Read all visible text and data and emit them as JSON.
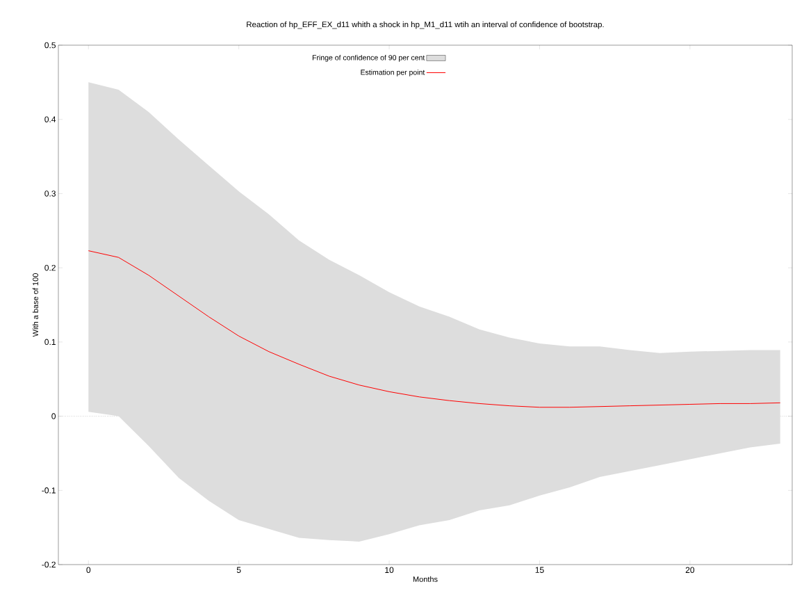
{
  "chart_data": {
    "type": "line",
    "title": "Reaction of hp_EFF_EX_d11 whith a shock in hp_M1_d11 wtih an interval of confidence of bootstrap.",
    "xlabel": "Months",
    "ylabel": "With a base of 100",
    "x": [
      0,
      1,
      2,
      3,
      4,
      5,
      6,
      7,
      8,
      9,
      10,
      11,
      12,
      13,
      14,
      15,
      16,
      17,
      18,
      19,
      20,
      21,
      22,
      23
    ],
    "series": [
      {
        "name": "Fringe of confidence of 90 per cent",
        "type": "area",
        "color": "#dddddd",
        "values": [
          null,
          null,
          null,
          null,
          null,
          null,
          null,
          null,
          null,
          null,
          null,
          null,
          null,
          null,
          null,
          null,
          null,
          null,
          null,
          null,
          null,
          null,
          null,
          null
        ],
        "upper": [
          0.45,
          0.44,
          0.41,
          0.373,
          0.338,
          0.303,
          0.272,
          0.237,
          0.211,
          0.19,
          0.167,
          0.148,
          0.134,
          0.117,
          0.106,
          0.098,
          0.094,
          0.094,
          0.089,
          0.085,
          0.087,
          0.088,
          0.089,
          0.089
        ],
        "lower": [
          0.006,
          0.0,
          -0.04,
          -0.083,
          -0.114,
          -0.14,
          -0.152,
          -0.164,
          -0.167,
          -0.169,
          -0.159,
          -0.147,
          -0.14,
          -0.127,
          -0.12,
          -0.107,
          -0.096,
          -0.082,
          -0.074,
          -0.066,
          -0.058,
          -0.05,
          -0.042,
          -0.037
        ]
      },
      {
        "name": "Estimation per point",
        "color": "#ff0000",
        "values": [
          0.223,
          0.214,
          0.19,
          0.162,
          0.134,
          0.108,
          0.087,
          0.07,
          0.054,
          0.042,
          0.033,
          0.026,
          0.021,
          0.017,
          0.014,
          0.012,
          0.012,
          0.013,
          0.014,
          0.015,
          0.016,
          0.017,
          0.017,
          0.018
        ]
      }
    ],
    "xlim": [
      -1,
      23.4
    ],
    "ylim": [
      -0.2,
      0.5
    ],
    "xticks": [
      0,
      5,
      10,
      15,
      20
    ],
    "yticks": [
      -0.2,
      -0.1,
      0,
      0.1,
      0.2,
      0.3,
      0.4,
      0.5
    ],
    "ref_lines": [
      {
        "axis": "y",
        "value": 0,
        "color": "#888888",
        "line_style": "dotted"
      }
    ],
    "grid": false,
    "legend": "top",
    "marker": "none",
    "line_style": "solid"
  }
}
